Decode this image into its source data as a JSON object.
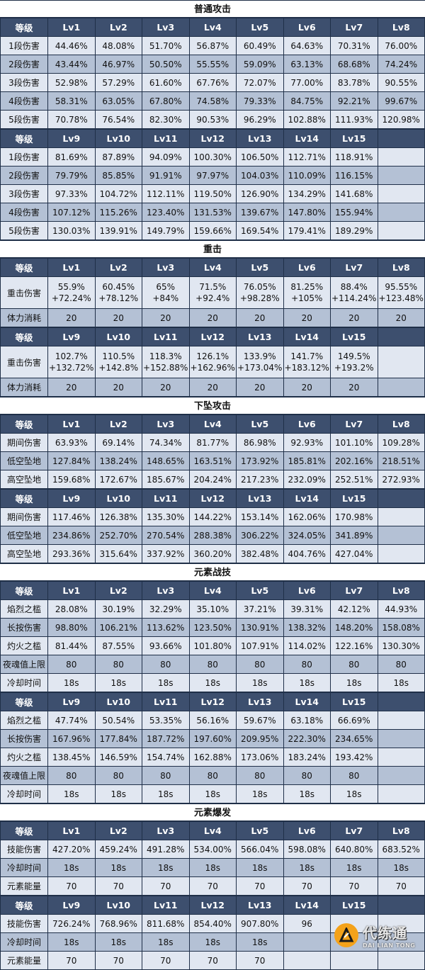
{
  "sections": [
    {
      "title": "普通攻击",
      "blocks": [
        {
          "headers": [
            "等级",
            "Lv1",
            "Lv2",
            "Lv3",
            "Lv4",
            "Lv5",
            "Lv6",
            "Lv7",
            "Lv8"
          ],
          "rows": [
            {
              "label": "1段伤害",
              "cells": [
                "44.46%",
                "48.08%",
                "51.70%",
                "56.87%",
                "60.49%",
                "64.63%",
                "70.31%",
                "76.00%"
              ]
            },
            {
              "label": "2段伤害",
              "cells": [
                "43.44%",
                "46.97%",
                "50.50%",
                "55.55%",
                "59.09%",
                "63.13%",
                "68.68%",
                "74.24%"
              ]
            },
            {
              "label": "3段伤害",
              "cells": [
                "52.98%",
                "57.29%",
                "61.60%",
                "67.76%",
                "72.07%",
                "77.00%",
                "83.78%",
                "90.55%"
              ]
            },
            {
              "label": "4段伤害",
              "cells": [
                "58.31%",
                "63.05%",
                "67.80%",
                "74.58%",
                "79.33%",
                "84.75%",
                "92.21%",
                "99.67%"
              ]
            },
            {
              "label": "5段伤害",
              "cells": [
                "70.78%",
                "76.54%",
                "82.30%",
                "90.53%",
                "96.29%",
                "102.88%",
                "111.93%",
                "120.98%"
              ]
            }
          ]
        },
        {
          "headers": [
            "等级",
            "Lv9",
            "Lv10",
            "Lv11",
            "Lv12",
            "Lv13",
            "Lv14",
            "Lv15",
            ""
          ],
          "rows": [
            {
              "label": "1段伤害",
              "cells": [
                "81.69%",
                "87.89%",
                "94.09%",
                "100.30%",
                "106.50%",
                "112.71%",
                "118.91%",
                ""
              ]
            },
            {
              "label": "2段伤害",
              "cells": [
                "79.79%",
                "85.85%",
                "91.91%",
                "97.97%",
                "104.03%",
                "110.09%",
                "116.15%",
                ""
              ]
            },
            {
              "label": "3段伤害",
              "cells": [
                "97.33%",
                "104.72%",
                "112.11%",
                "119.50%",
                "126.90%",
                "134.29%",
                "141.68%",
                ""
              ]
            },
            {
              "label": "4段伤害",
              "cells": [
                "107.12%",
                "115.26%",
                "123.40%",
                "131.53%",
                "139.67%",
                "147.80%",
                "155.94%",
                ""
              ]
            },
            {
              "label": "5段伤害",
              "cells": [
                "130.03%",
                "139.91%",
                "149.79%",
                "159.66%",
                "169.54%",
                "179.41%",
                "189.29%",
                ""
              ]
            }
          ]
        }
      ]
    },
    {
      "title": "重击",
      "blocks": [
        {
          "headers": [
            "等级",
            "Lv1",
            "Lv2",
            "Lv3",
            "Lv4",
            "Lv5",
            "Lv6",
            "Lv7",
            "Lv8"
          ],
          "rows": [
            {
              "label": "重击伤害",
              "tall": true,
              "cells": [
                [
                  "55.9%",
                  "+72.24%"
                ],
                [
                  "60.45%",
                  "+78.12%"
                ],
                [
                  "65%",
                  "+84%"
                ],
                [
                  "71.5%",
                  "+92.4%"
                ],
                [
                  "76.05%",
                  "+98.28%"
                ],
                [
                  "81.25%",
                  "+105%"
                ],
                [
                  "88.4%",
                  "+114.24%"
                ],
                [
                  "95.55%",
                  "+123.48%"
                ]
              ]
            },
            {
              "label": "体力消耗",
              "cells": [
                "20",
                "20",
                "20",
                "20",
                "20",
                "20",
                "20",
                "20"
              ]
            }
          ]
        },
        {
          "headers": [
            "等级",
            "Lv9",
            "Lv10",
            "Lv11",
            "Lv12",
            "Lv13",
            "Lv14",
            "Lv15",
            ""
          ],
          "rows": [
            {
              "label": "重击伤害",
              "tall": true,
              "cells": [
                [
                  "102.7%",
                  "+132.72%"
                ],
                [
                  "110.5%",
                  "+142.8%"
                ],
                [
                  "118.3%",
                  "+152.88%"
                ],
                [
                  "126.1%",
                  "+162.96%"
                ],
                [
                  "133.9%",
                  "+173.04%"
                ],
                [
                  "141.7%",
                  "+183.12%"
                ],
                [
                  "149.5%",
                  "+193.2%"
                ],
                ""
              ]
            },
            {
              "label": "体力消耗",
              "cells": [
                "20",
                "20",
                "20",
                "20",
                "20",
                "20",
                "20",
                ""
              ]
            }
          ]
        }
      ]
    },
    {
      "title": "下坠攻击",
      "blocks": [
        {
          "headers": [
            "等级",
            "Lv1",
            "Lv2",
            "Lv3",
            "Lv4",
            "Lv5",
            "Lv6",
            "Lv7",
            "Lv8"
          ],
          "rows": [
            {
              "label": "期间伤害",
              "cells": [
                "63.93%",
                "69.14%",
                "74.34%",
                "81.77%",
                "86.98%",
                "92.93%",
                "101.10%",
                "109.28%"
              ]
            },
            {
              "label": "低空坠地",
              "cells": [
                "127.84%",
                "138.24%",
                "148.65%",
                "163.51%",
                "173.92%",
                "185.81%",
                "202.16%",
                "218.51%"
              ]
            },
            {
              "label": "高空坠地",
              "cells": [
                "159.68%",
                "172.67%",
                "185.67%",
                "204.24%",
                "217.23%",
                "232.09%",
                "252.51%",
                "272.93%"
              ]
            }
          ]
        },
        {
          "headers": [
            "等级",
            "Lv9",
            "Lv10",
            "Lv11",
            "Lv12",
            "Lv13",
            "Lv14",
            "Lv15",
            ""
          ],
          "rows": [
            {
              "label": "期间伤害",
              "cells": [
                "117.46%",
                "126.38%",
                "135.30%",
                "144.22%",
                "153.14%",
                "162.06%",
                "170.98%",
                ""
              ]
            },
            {
              "label": "低空坠地",
              "cells": [
                "234.86%",
                "252.70%",
                "270.54%",
                "288.38%",
                "306.22%",
                "324.05%",
                "341.89%",
                ""
              ]
            },
            {
              "label": "高空坠地",
              "cells": [
                "293.36%",
                "315.64%",
                "337.92%",
                "360.20%",
                "382.48%",
                "404.76%",
                "427.04%",
                ""
              ]
            }
          ]
        }
      ]
    },
    {
      "title": "元素战技",
      "blocks": [
        {
          "headers": [
            "等级",
            "Lv1",
            "Lv2",
            "Lv3",
            "Lv4",
            "Lv5",
            "Lv6",
            "Lv7",
            "Lv8"
          ],
          "rows": [
            {
              "label": "焰烈之槛",
              "cells": [
                "28.08%",
                "30.19%",
                "32.29%",
                "35.10%",
                "37.21%",
                "39.31%",
                "42.12%",
                "44.93%"
              ]
            },
            {
              "label": "长按伤害",
              "cells": [
                "98.80%",
                "106.21%",
                "113.62%",
                "123.50%",
                "130.91%",
                "138.32%",
                "148.20%",
                "158.08%"
              ]
            },
            {
              "label": "灼火之槛",
              "cells": [
                "81.44%",
                "87.55%",
                "93.66%",
                "101.80%",
                "107.91%",
                "114.02%",
                "122.16%",
                "130.30%"
              ]
            },
            {
              "label": "夜魂值上限",
              "cells": [
                "80",
                "80",
                "80",
                "80",
                "80",
                "80",
                "80",
                "80"
              ]
            },
            {
              "label": "冷却时间",
              "cells": [
                "18s",
                "18s",
                "18s",
                "18s",
                "18s",
                "18s",
                "18s",
                "18s"
              ]
            }
          ]
        },
        {
          "headers": [
            "等级",
            "Lv9",
            "Lv10",
            "Lv11",
            "Lv12",
            "Lv13",
            "Lv14",
            "Lv15",
            ""
          ],
          "rows": [
            {
              "label": "焰烈之槛",
              "cells": [
                "47.74%",
                "50.54%",
                "53.35%",
                "56.16%",
                "59.67%",
                "63.18%",
                "66.69%",
                ""
              ]
            },
            {
              "label": "长按伤害",
              "cells": [
                "167.96%",
                "177.84%",
                "187.72%",
                "197.60%",
                "209.95%",
                "222.30%",
                "234.65%",
                ""
              ]
            },
            {
              "label": "灼火之槛",
              "cells": [
                "138.45%",
                "146.59%",
                "154.74%",
                "162.88%",
                "173.06%",
                "183.24%",
                "193.42%",
                ""
              ]
            },
            {
              "label": "夜魂值上限",
              "cells": [
                "80",
                "80",
                "80",
                "80",
                "80",
                "80",
                "80",
                ""
              ]
            },
            {
              "label": "冷却时间",
              "cells": [
                "18s",
                "18s",
                "18s",
                "18s",
                "18s",
                "18s",
                "18s",
                ""
              ]
            }
          ]
        }
      ]
    },
    {
      "title": "元素爆发",
      "blocks": [
        {
          "headers": [
            "等级",
            "Lv1",
            "Lv2",
            "Lv3",
            "Lv4",
            "Lv5",
            "Lv6",
            "Lv7",
            "Lv8"
          ],
          "rows": [
            {
              "label": "技能伤害",
              "cells": [
                "427.20%",
                "459.24%",
                "491.28%",
                "534.00%",
                "566.04%",
                "598.08%",
                "640.80%",
                "683.52%"
              ]
            },
            {
              "label": "冷却时间",
              "cells": [
                "18s",
                "18s",
                "18s",
                "18s",
                "18s",
                "18s",
                "18s",
                "18s"
              ]
            },
            {
              "label": "元素能量",
              "cells": [
                "70",
                "70",
                "70",
                "70",
                "70",
                "70",
                "70",
                "70"
              ]
            }
          ]
        },
        {
          "headers": [
            "等级",
            "Lv9",
            "Lv10",
            "Lv11",
            "Lv12",
            "Lv13",
            "Lv14",
            "Lv15",
            ""
          ],
          "rows": [
            {
              "label": "技能伤害",
              "cells": [
                "726.24%",
                "768.96%",
                "811.68%",
                "854.40%",
                "907.80%",
                "96",
                "",
                ""
              ]
            },
            {
              "label": "冷却时间",
              "cells": [
                "18s",
                "18s",
                "18s",
                "18s",
                "18s",
                "",
                "",
                ""
              ]
            },
            {
              "label": "元素能量",
              "cells": [
                "70",
                "70",
                "70",
                "70",
                "70",
                "",
                "",
                ""
              ]
            }
          ]
        }
      ]
    }
  ],
  "watermark": {
    "main": "代练通",
    "sub": "DAI LIAN TONG",
    "color": "#f4a21a"
  }
}
